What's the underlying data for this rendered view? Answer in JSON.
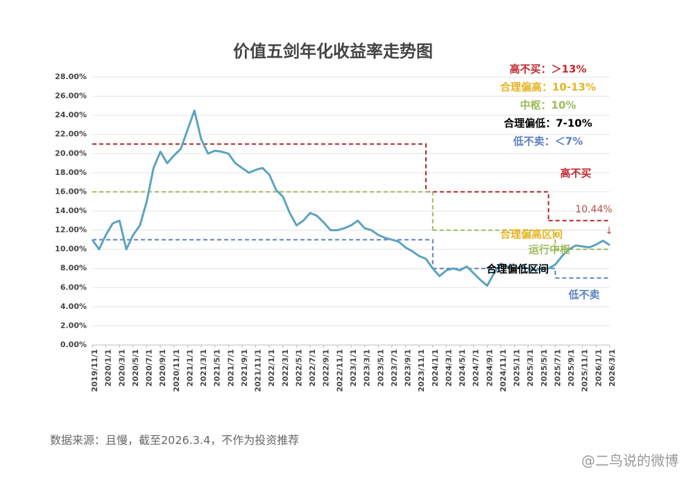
{
  "chart_data": {
    "type": "line",
    "title": "价值五剑年化收益率走势图",
    "categories": [
      "2019/11/1",
      null,
      "2020/1/1",
      null,
      "2020/3/1",
      null,
      "2020/5/1",
      null,
      "2020/7/1",
      null,
      "2020/9/1",
      null,
      "2020/11/1",
      null,
      "2021/1/1",
      null,
      "2021/3/1",
      null,
      "2021/5/1",
      null,
      "2021/7/1",
      null,
      "2021/9/1",
      null,
      "2021/11/1",
      null,
      "2022/1/1",
      null,
      "2022/3/1",
      null,
      "2022/5/1",
      null,
      "2022/7/1",
      null,
      "2022/9/1",
      null,
      "2022/11/1",
      null,
      "2023/1/1",
      null,
      "2023/3/1",
      null,
      "2023/5/1",
      null,
      "2023/7/1",
      null,
      "2023/9/1",
      null,
      "2023/11/1",
      null,
      "2024/1/1",
      null,
      "2024/3/1",
      null,
      "2024/5/1",
      null,
      "2024/7/1",
      null,
      "2024/9/1",
      null,
      "2024/11/1",
      null,
      "2025/1/1",
      null,
      "2025/3/1",
      null,
      "2025/5/1",
      null,
      "2025/7/1",
      null,
      "2025/9/1",
      null,
      "2025/11/1",
      null,
      "2026/1/1",
      null,
      "2026/3/1"
    ],
    "series": [
      {
        "color": "#5ba3c0",
        "values": [
          11.0,
          10.0,
          11.5,
          12.7,
          13.0,
          10.0,
          11.5,
          12.5,
          15.0,
          18.5,
          20.2,
          19.0,
          19.8,
          20.5,
          22.5,
          24.5,
          21.5,
          20.0,
          20.3,
          20.2,
          20.0,
          19.0,
          18.5,
          18.0,
          18.3,
          18.5,
          17.8,
          16.2,
          15.5,
          13.8,
          12.5,
          13.0,
          13.8,
          13.5,
          12.8,
          12.0,
          12.0,
          12.2,
          12.5,
          13.0,
          12.2,
          12.0,
          11.5,
          11.2,
          11.0,
          10.8,
          10.2,
          9.8,
          9.3,
          9.0,
          8.0,
          7.2,
          7.8,
          8.0,
          7.8,
          8.2,
          7.5,
          6.8,
          6.2,
          7.5,
          8.5,
          8.2,
          8.0,
          8.2,
          8.0,
          7.8,
          8.0,
          8.0,
          8.4,
          9.3,
          10.0,
          10.4,
          10.3,
          10.2,
          10.5,
          10.9,
          10.44
        ]
      }
    ],
    "reference_lines": [
      {
        "color": "#b22222",
        "segments": [
          {
            "start": 0,
            "end": 49,
            "value": 21
          },
          {
            "start": 49,
            "end": 67,
            "value": 16
          },
          {
            "start": 67,
            "end": 76,
            "value": 13
          }
        ]
      },
      {
        "color": "#9bbb59",
        "segments": [
          {
            "start": 0,
            "end": 50,
            "value": 16
          },
          {
            "start": 50,
            "end": 68,
            "value": 12
          },
          {
            "start": 68,
            "end": 76,
            "value": 10
          }
        ]
      },
      {
        "color": "#5b7fbf",
        "segments": [
          {
            "start": 0,
            "end": 50,
            "value": 11
          },
          {
            "start": 50,
            "end": 68,
            "value": 8
          },
          {
            "start": 68,
            "end": 76,
            "value": 7
          }
        ]
      }
    ],
    "ylim": [
      0,
      28
    ],
    "yticks": [
      {
        "value": 0,
        "label": "0.00%"
      },
      {
        "value": 2,
        "label": "2.00%"
      },
      {
        "value": 4,
        "label": "4.00%"
      },
      {
        "value": 6,
        "label": "6.00%"
      },
      {
        "value": 8,
        "label": "8.00%"
      },
      {
        "value": 10,
        "label": "10.00%"
      },
      {
        "value": 12,
        "label": "12.00%"
      },
      {
        "value": 14,
        "label": "14.00%"
      },
      {
        "value": 16,
        "label": "16.00%"
      },
      {
        "value": 18,
        "label": "18.00%"
      },
      {
        "value": 20,
        "label": "20.00%"
      },
      {
        "value": 22,
        "label": "22.00%"
      },
      {
        "value": 24,
        "label": "24.00%"
      },
      {
        "value": 26,
        "label": "26.00%"
      },
      {
        "value": 28,
        "label": "28.00%"
      }
    ],
    "grid": true,
    "tiers": [
      {
        "text": "高不买：＞13%",
        "color": "#c0272d"
      },
      {
        "text": "合理偏高：10-13%",
        "color": "#e6b422"
      },
      {
        "text": "中枢：10%",
        "color": "#9bbb59"
      },
      {
        "text": "合理偏低：7-10%",
        "color": "#000000"
      },
      {
        "text": "低不卖：＜7%",
        "color": "#5b7fbf"
      }
    ],
    "annotations": [
      {
        "text": "高不买",
        "color": "#c0272d"
      },
      {
        "text": "10.44%",
        "color": "#b0504a"
      },
      {
        "text": "↓",
        "color": "#b0504a"
      },
      {
        "text": "合理偏高区间",
        "color": "#e6b422"
      },
      {
        "text": "运行中枢",
        "color": "#9bbb59"
      },
      {
        "text": "合理偏低区间",
        "color": "#000000"
      },
      {
        "text": "低不卖",
        "color": "#5b7fbf"
      }
    ]
  },
  "footer": {
    "source": "数据来源：且慢，截至2026.3.4，不作为投资推荐",
    "watermark": "@二鸟说的微博"
  }
}
